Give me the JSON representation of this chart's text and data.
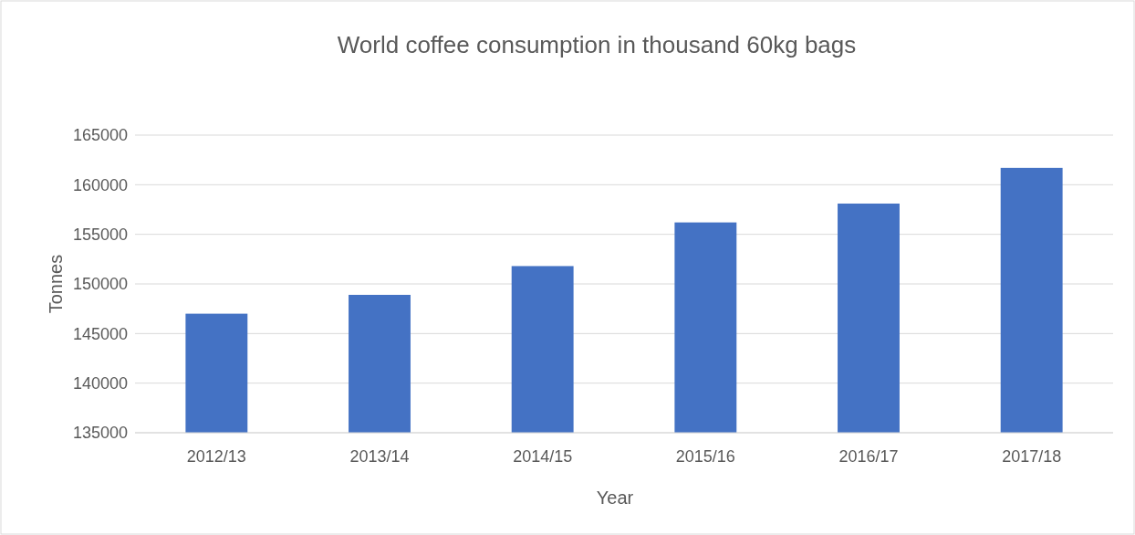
{
  "chart_data": {
    "type": "bar",
    "title": "World coffee consumption in thousand 60kg bags",
    "xlabel": "Year",
    "ylabel": "Tonnes",
    "categories": [
      "2012/13",
      "2013/14",
      "2014/15",
      "2015/16",
      "2016/17",
      "2017/18"
    ],
    "values": [
      147000,
      148900,
      151800,
      156200,
      158100,
      161700
    ],
    "color": "#4472c4",
    "ylim": [
      135000,
      165000
    ],
    "yticks": [
      135000,
      140000,
      145000,
      150000,
      155000,
      160000,
      165000
    ],
    "grid": "y"
  }
}
